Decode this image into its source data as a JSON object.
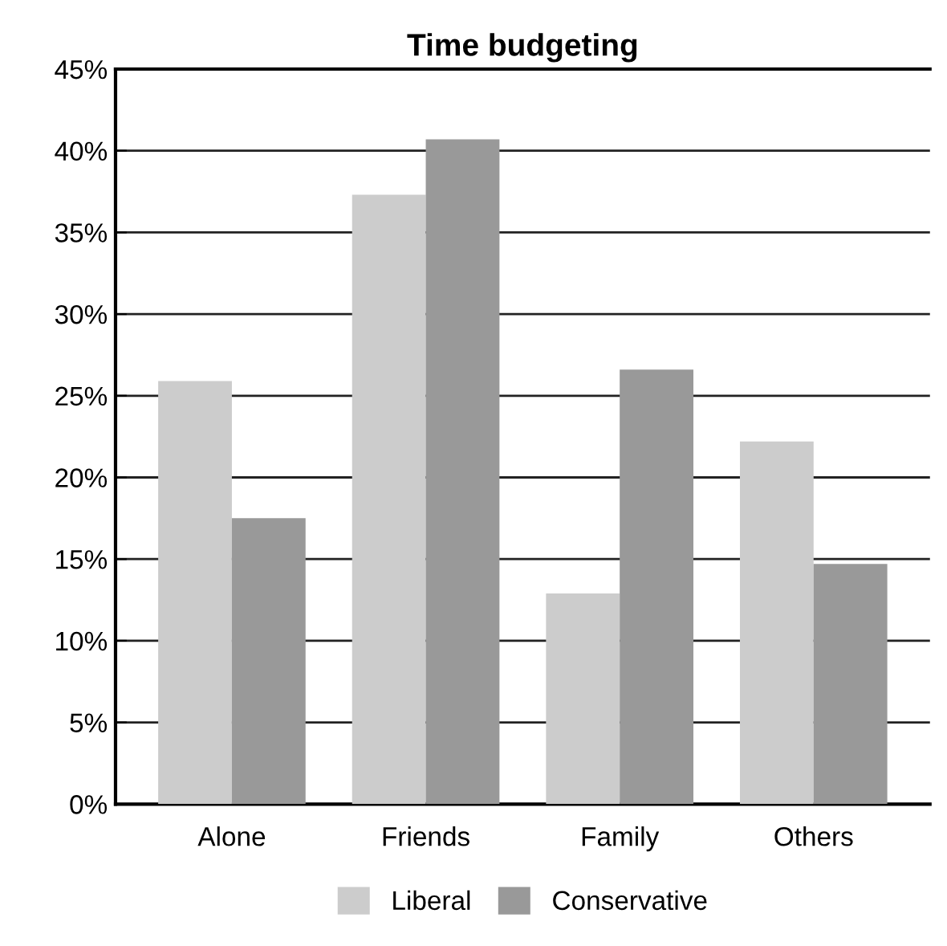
{
  "chart_data": {
    "type": "bar",
    "title": "Time budgeting",
    "categories": [
      "Alone",
      "Friends",
      "Family",
      "Others"
    ],
    "series": [
      {
        "name": "Liberal",
        "color": "#cccccc",
        "values": [
          25.9,
          37.3,
          12.9,
          22.2
        ]
      },
      {
        "name": "Conservative",
        "color": "#999999",
        "values": [
          17.5,
          40.7,
          26.6,
          14.7
        ]
      }
    ],
    "ylim": [
      0,
      45
    ],
    "yticks": [
      {
        "value": 0,
        "label": "0%"
      },
      {
        "value": 5,
        "label": "5%"
      },
      {
        "value": 10,
        "label": "10%"
      },
      {
        "value": 15,
        "label": "15%"
      },
      {
        "value": 20,
        "label": "20%"
      },
      {
        "value": 25,
        "label": "25%"
      },
      {
        "value": 30,
        "label": "30%"
      },
      {
        "value": 35,
        "label": "35%"
      },
      {
        "value": 40,
        "label": "40%"
      },
      {
        "value": 45,
        "label": "45%"
      }
    ],
    "grid": "y",
    "legend": "bottom"
  }
}
